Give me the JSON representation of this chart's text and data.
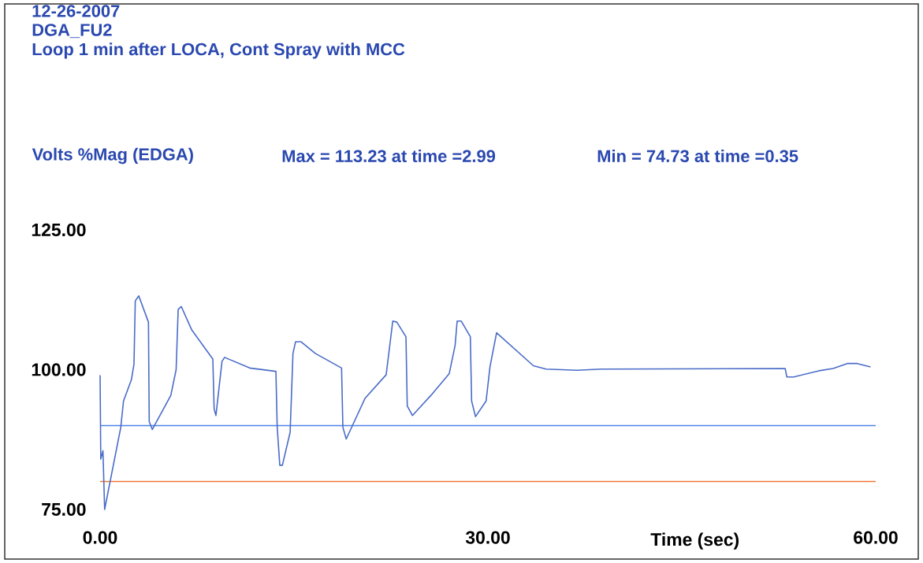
{
  "chart_data": {
    "type": "line",
    "title": "12-26-2007",
    "subtitle": "DGA_FU2",
    "ylabel": "Volts %Mag (EDGA)",
    "xlabel": "Time (sec)",
    "annotations": [
      "Loop 1 min after LOCA, Cont Spray with MCC",
      "Max =  113.23 at time =2.99",
      "Min =  74.73 at time =0.35"
    ],
    "x": [
      0,
      0.05,
      0.22,
      0.35,
      1.6,
      1.81,
      2.42,
      2.62,
      2.72,
      2.99,
      3.74,
      3.8,
      4.04,
      5.47,
      5.88,
      6.04,
      6.28,
      7.09,
      8.72,
      8.82,
      8.96,
      9.43,
      9.63,
      11.57,
      13.6,
      13.7,
      13.9,
      14.1,
      14.7,
      14.92,
      15.12,
      15.53,
      16.65,
      18.68,
      18.78,
      19.04,
      20.5,
      22.13,
      22.38,
      22.64,
      22.95,
      23.66,
      23.76,
      24.16,
      25.59,
      27.01,
      27.46,
      27.62,
      27.93,
      28.64,
      28.74,
      29.04,
      29.86,
      30.16,
      30.67,
      33.52,
      34.5,
      36.9,
      38.75,
      53.0,
      53.12,
      53.66,
      55.6,
      56.7,
      57.8,
      58.57,
      59.6
    ],
    "values": [
      99,
      84,
      85.5,
      75,
      89.7,
      94.4,
      98.2,
      101,
      112.3,
      113.2,
      108.5,
      90.7,
      89.3,
      95.4,
      100,
      110.8,
      111.3,
      107.1,
      101.9,
      93,
      91.8,
      101.5,
      102.2,
      100.3,
      99.7,
      89.7,
      82.9,
      82.9,
      88.8,
      102.9,
      105,
      105,
      102.9,
      100.3,
      89.7,
      87.6,
      94.9,
      99.1,
      103.8,
      108.7,
      108.5,
      105.9,
      93.5,
      91.8,
      95.4,
      99.3,
      104.3,
      108.7,
      108.7,
      105.9,
      94.4,
      91.6,
      94.4,
      100.5,
      106.6,
      100.7,
      100.1,
      99.9,
      100.1,
      100.2,
      98.7,
      98.7,
      99.8,
      100.2,
      101.1,
      101.1,
      100.5
    ],
    "color": "#4a6cc8",
    "ref_lines": [
      {
        "axis": "y",
        "value": 90,
        "color": "#4f82e6"
      },
      {
        "axis": "y",
        "value": 80,
        "color": "#f27535"
      }
    ],
    "xlim": [
      0,
      60
    ],
    "ylim": [
      75,
      125
    ],
    "xticks": [
      {
        "value": 0,
        "label": "0.00"
      },
      {
        "value": 30,
        "label": "30.00"
      },
      {
        "value": 60,
        "label": "60.00"
      }
    ],
    "yticks": [
      {
        "value": 75,
        "label": "75.00"
      },
      {
        "value": 100,
        "label": "100.00"
      },
      {
        "value": 125,
        "label": "125.00"
      }
    ]
  }
}
